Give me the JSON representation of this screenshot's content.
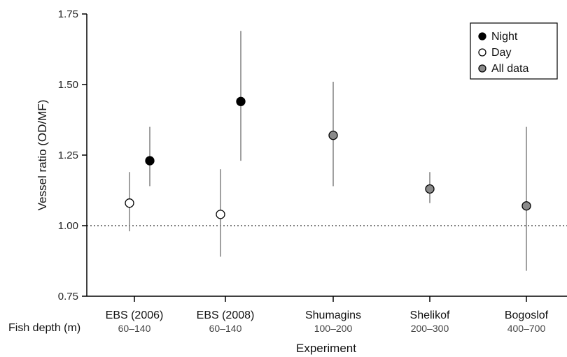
{
  "chart_data": {
    "type": "scatter",
    "ylabel": "Vessel ratio  (OD/MF)",
    "xlabel": "Experiment",
    "depth_label": "Fish depth (m)",
    "ylim": [
      0.75,
      1.75
    ],
    "yticks": [
      "0.75",
      "1.00",
      "1.25",
      "1.50",
      "1.75"
    ],
    "reference_line": 1.0,
    "legend_position": "top-right",
    "categories": [
      {
        "name": "EBS (2006)",
        "depth": "60–140"
      },
      {
        "name": "EBS (2008)",
        "depth": "60–140"
      },
      {
        "name": "Shumagins",
        "depth": "100–200"
      },
      {
        "name": "Shelikof",
        "depth": "200–300"
      },
      {
        "name": "Bogoslof",
        "depth": "400–700"
      }
    ],
    "series": [
      {
        "name": "Night",
        "color": "#000000",
        "points": [
          {
            "category": "EBS (2006)",
            "y": 1.23,
            "low": 1.14,
            "high": 1.35
          },
          {
            "category": "EBS (2008)",
            "y": 1.44,
            "low": 1.23,
            "high": 1.69
          }
        ]
      },
      {
        "name": "Day",
        "color": "#ffffff",
        "points": [
          {
            "category": "EBS (2006)",
            "y": 1.08,
            "low": 0.98,
            "high": 1.19
          },
          {
            "category": "EBS (2008)",
            "y": 1.04,
            "low": 0.89,
            "high": 1.2
          }
        ]
      },
      {
        "name": "All data",
        "color": "#8a8a8a",
        "points": [
          {
            "category": "Shumagins",
            "y": 1.32,
            "low": 1.14,
            "high": 1.51
          },
          {
            "category": "Shelikof",
            "y": 1.13,
            "low": 1.08,
            "high": 1.19
          },
          {
            "category": "Bogoslof",
            "y": 1.07,
            "low": 0.84,
            "high": 1.35
          }
        ]
      }
    ]
  }
}
